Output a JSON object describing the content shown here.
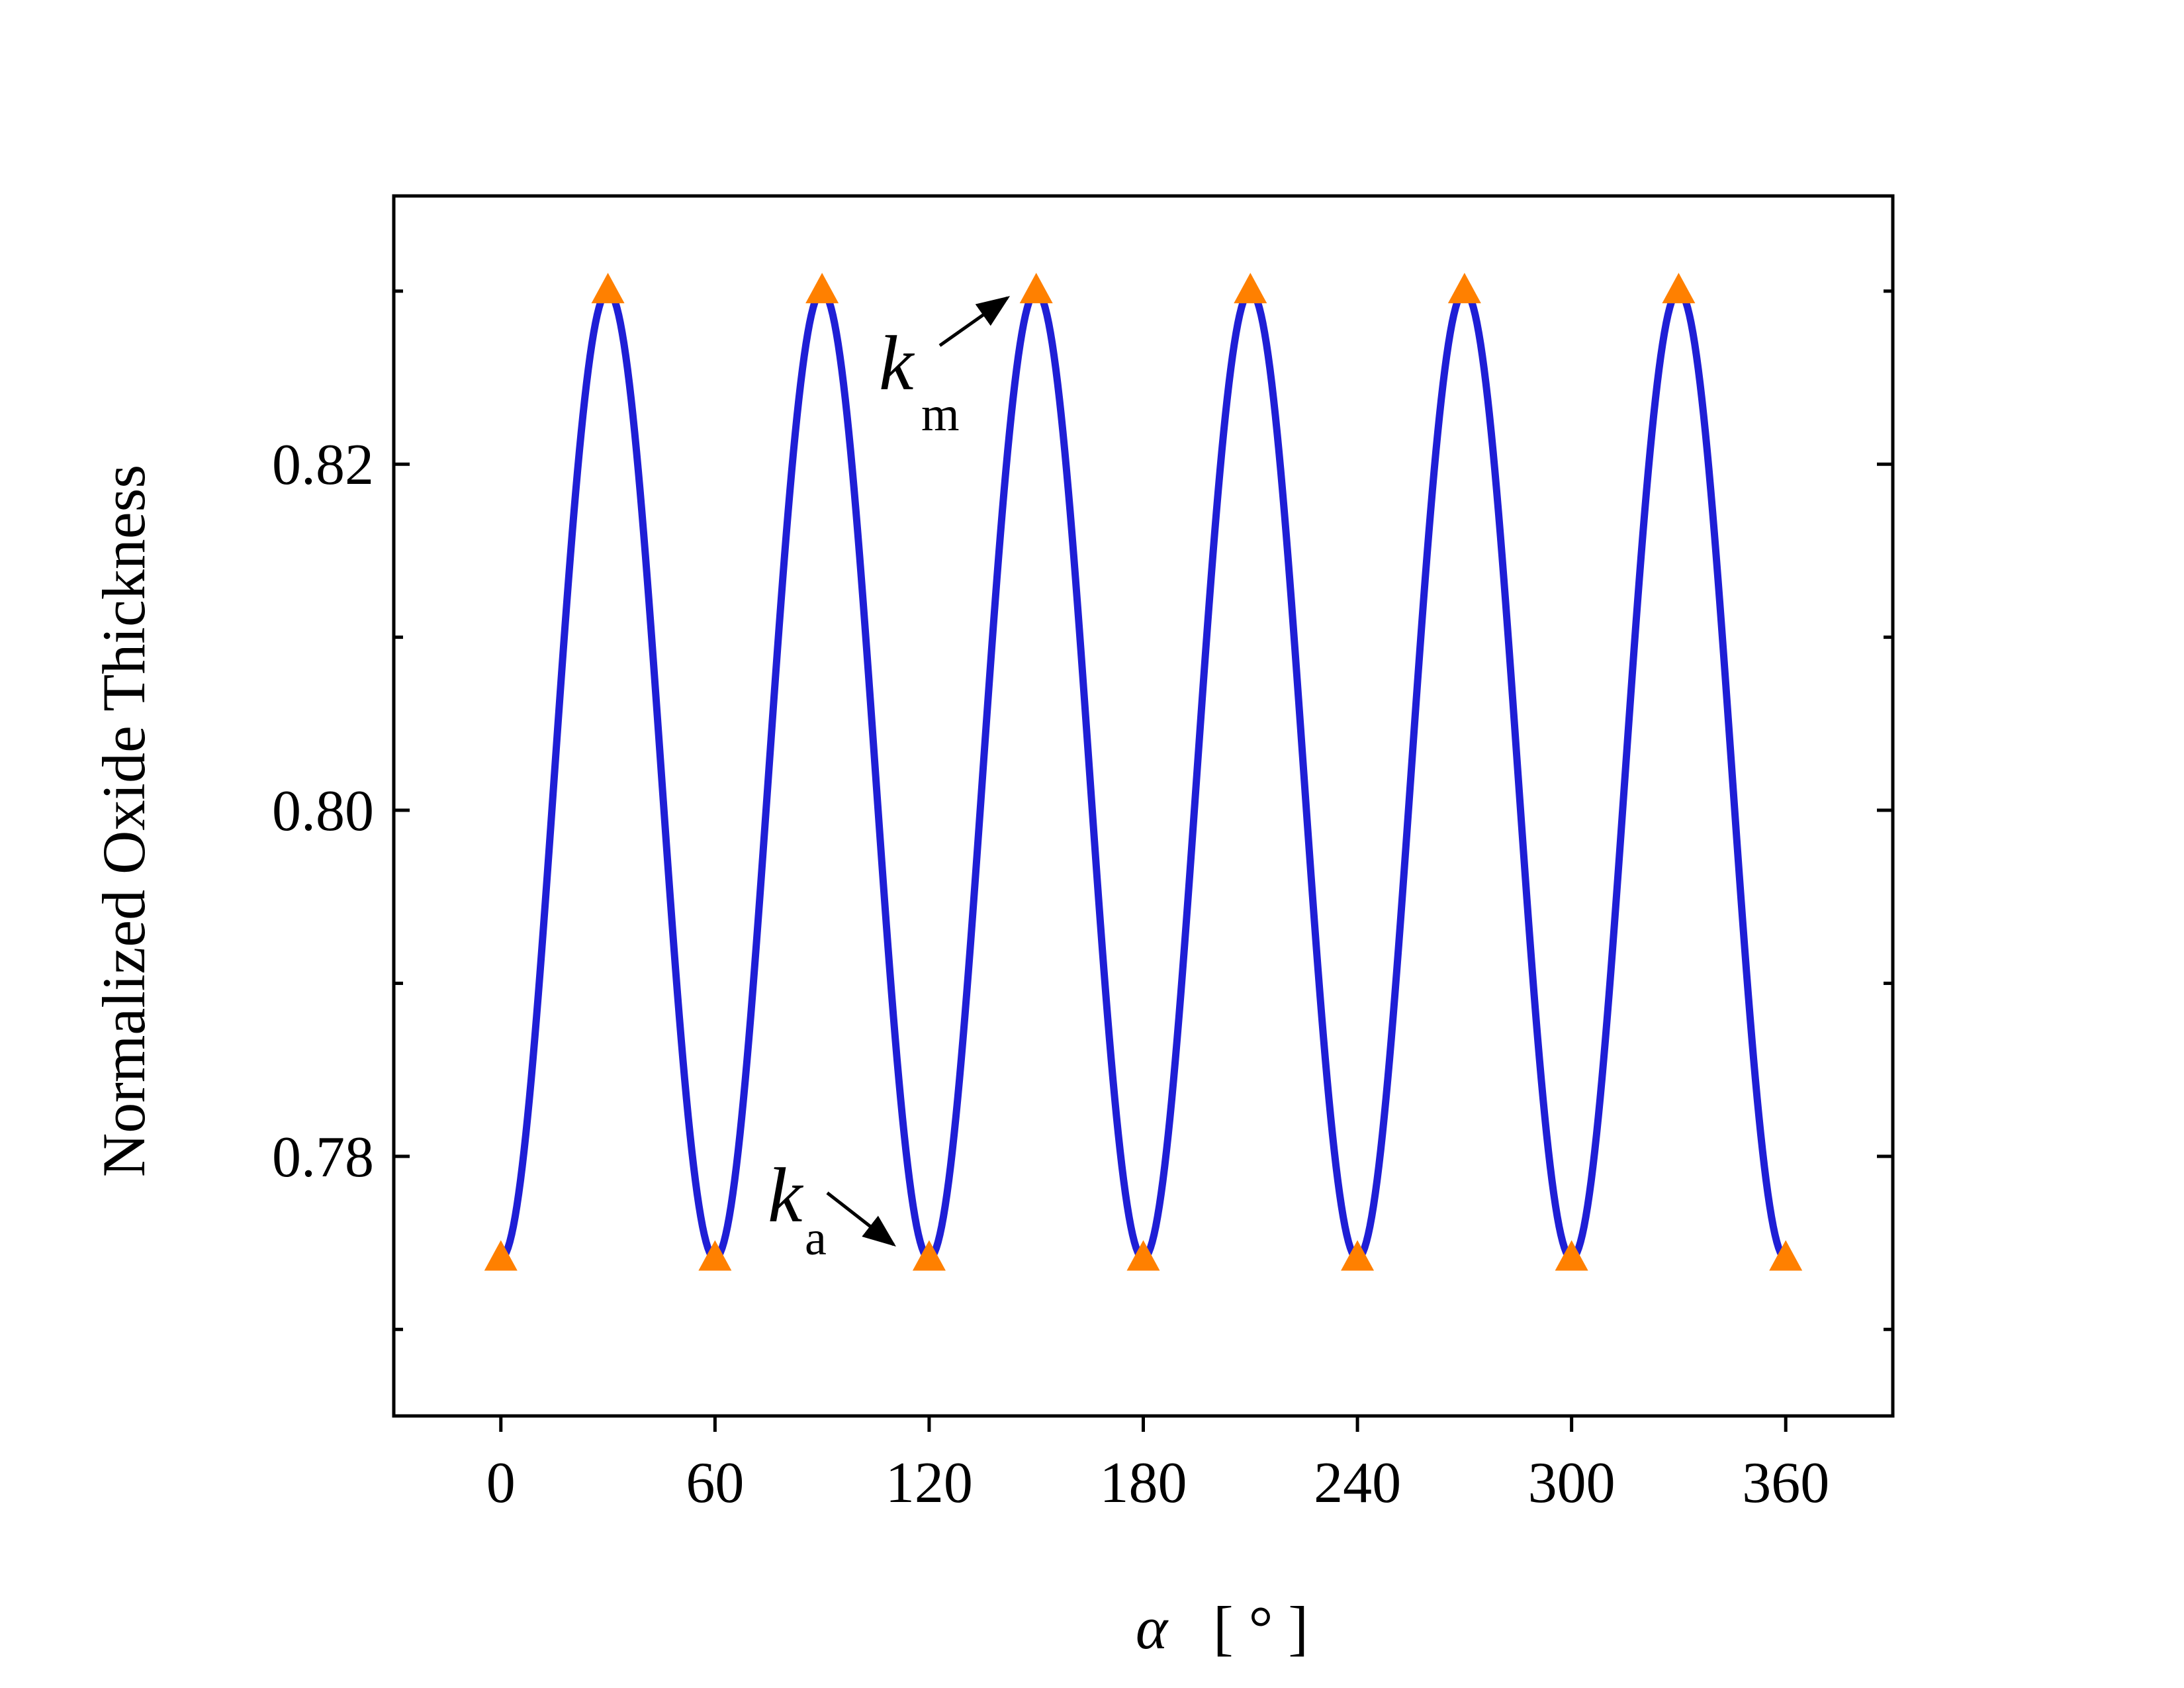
{
  "chart_data": {
    "type": "line",
    "title": "",
    "xlabel_symbol": "α",
    "xlabel_unit": "[ ° ]",
    "ylabel": "Normalized Oxide Thickness",
    "xlim": [
      -30,
      390
    ],
    "ylim": [
      0.765,
      0.8355
    ],
    "x_ticks": [
      0,
      60,
      120,
      180,
      240,
      300,
      360
    ],
    "x_tick_labels": [
      "0",
      "60",
      "120",
      "180",
      "240",
      "300",
      "360"
    ],
    "y_major_ticks": [
      0.78,
      0.8,
      0.82
    ],
    "y_tick_labels": [
      "0.78",
      "0.80",
      "0.82"
    ],
    "y_minor_ticks": [
      0.77,
      0.79,
      0.81,
      0.83
    ],
    "grid": false,
    "series": [
      {
        "kind": "curve",
        "color": "#1f1fd6",
        "function": "k_a + (k_m - k_a) * sin^2(3α)",
        "k_min": 0.7741,
        "k_max": 0.83,
        "period_deg": 60
      },
      {
        "kind": "markers",
        "marker": "triangle",
        "color": "#ff8000",
        "points": [
          [
            0,
            0.7741
          ],
          [
            30,
            0.83
          ],
          [
            60,
            0.7741
          ],
          [
            90,
            0.83
          ],
          [
            120,
            0.7741
          ],
          [
            150,
            0.83
          ],
          [
            180,
            0.7741
          ],
          [
            210,
            0.83
          ],
          [
            240,
            0.7741
          ],
          [
            270,
            0.83
          ],
          [
            300,
            0.7741
          ],
          [
            330,
            0.83
          ],
          [
            360,
            0.7741
          ]
        ]
      }
    ],
    "annotations": [
      {
        "symbol": "k",
        "subscript": "m",
        "target": [
          150,
          0.83
        ]
      },
      {
        "symbol": "k",
        "subscript": "a",
        "target": [
          120,
          0.7741
        ]
      }
    ]
  }
}
